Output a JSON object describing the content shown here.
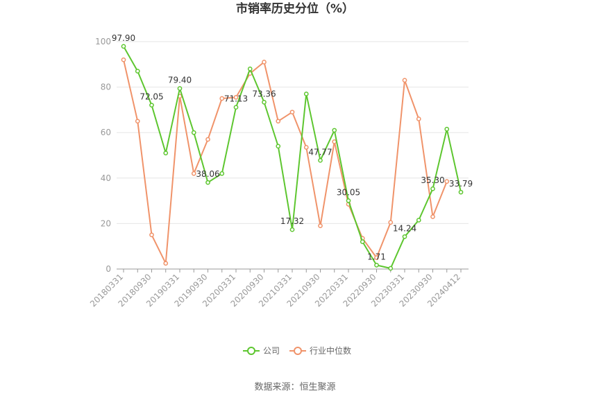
{
  "chart_data": {
    "type": "line",
    "title": "市销率历史分位（%）",
    "xlabel": "",
    "ylabel": "",
    "ylim": [
      0,
      100
    ],
    "yticks": [
      0,
      20,
      40,
      60,
      80,
      100
    ],
    "grid": true,
    "legend_position": "bottom-center",
    "x": [
      "20180331",
      "20180630",
      "20180930",
      "20181231",
      "20190331",
      "20190630",
      "20190930",
      "20191231",
      "20200331",
      "20200630",
      "20200930",
      "20201231",
      "20210331",
      "20210630",
      "20210930",
      "20211231",
      "20220331",
      "20220630",
      "20220930",
      "20221231",
      "20230331",
      "20230630",
      "20230930",
      "20231231",
      "20240412"
    ],
    "x_tick_labels": [
      "20180331",
      "20180930",
      "20190331",
      "20190930",
      "20200331",
      "20200930",
      "20210331",
      "20210930",
      "20220331",
      "20220930",
      "20230331",
      "20230930",
      "20240412"
    ],
    "series": [
      {
        "name": "公司",
        "color": "#5dc62f",
        "values": [
          97.9,
          87.0,
          72.05,
          51.0,
          79.4,
          60.0,
          38.06,
          42.0,
          71.13,
          88.0,
          73.36,
          54.0,
          17.32,
          77.0,
          47.77,
          61.0,
          30.05,
          12.0,
          1.71,
          0.3,
          14.24,
          21.5,
          35.3,
          61.5,
          33.79
        ],
        "labels": [
          "97.90",
          "",
          "72.05",
          "",
          "79.40",
          "",
          "38.06",
          "",
          "71.13",
          "",
          "73.36",
          "",
          "17.32",
          "",
          "47.77",
          "",
          "30.05",
          "",
          "1.71",
          "",
          "14.24",
          "",
          "35.30",
          "",
          "33.79"
        ]
      },
      {
        "name": "行业中位数",
        "color": "#f0936a",
        "values": [
          92.0,
          65.0,
          15.0,
          2.5,
          76.0,
          42.0,
          57.0,
          75.0,
          75.5,
          86.0,
          91.0,
          65.0,
          69.0,
          53.5,
          19.0,
          56.0,
          28.5,
          13.5,
          5.0,
          20.5,
          83.0,
          66.0,
          23.0,
          38.5,
          null
        ]
      }
    ]
  },
  "source": "数据来源：恒生聚源"
}
